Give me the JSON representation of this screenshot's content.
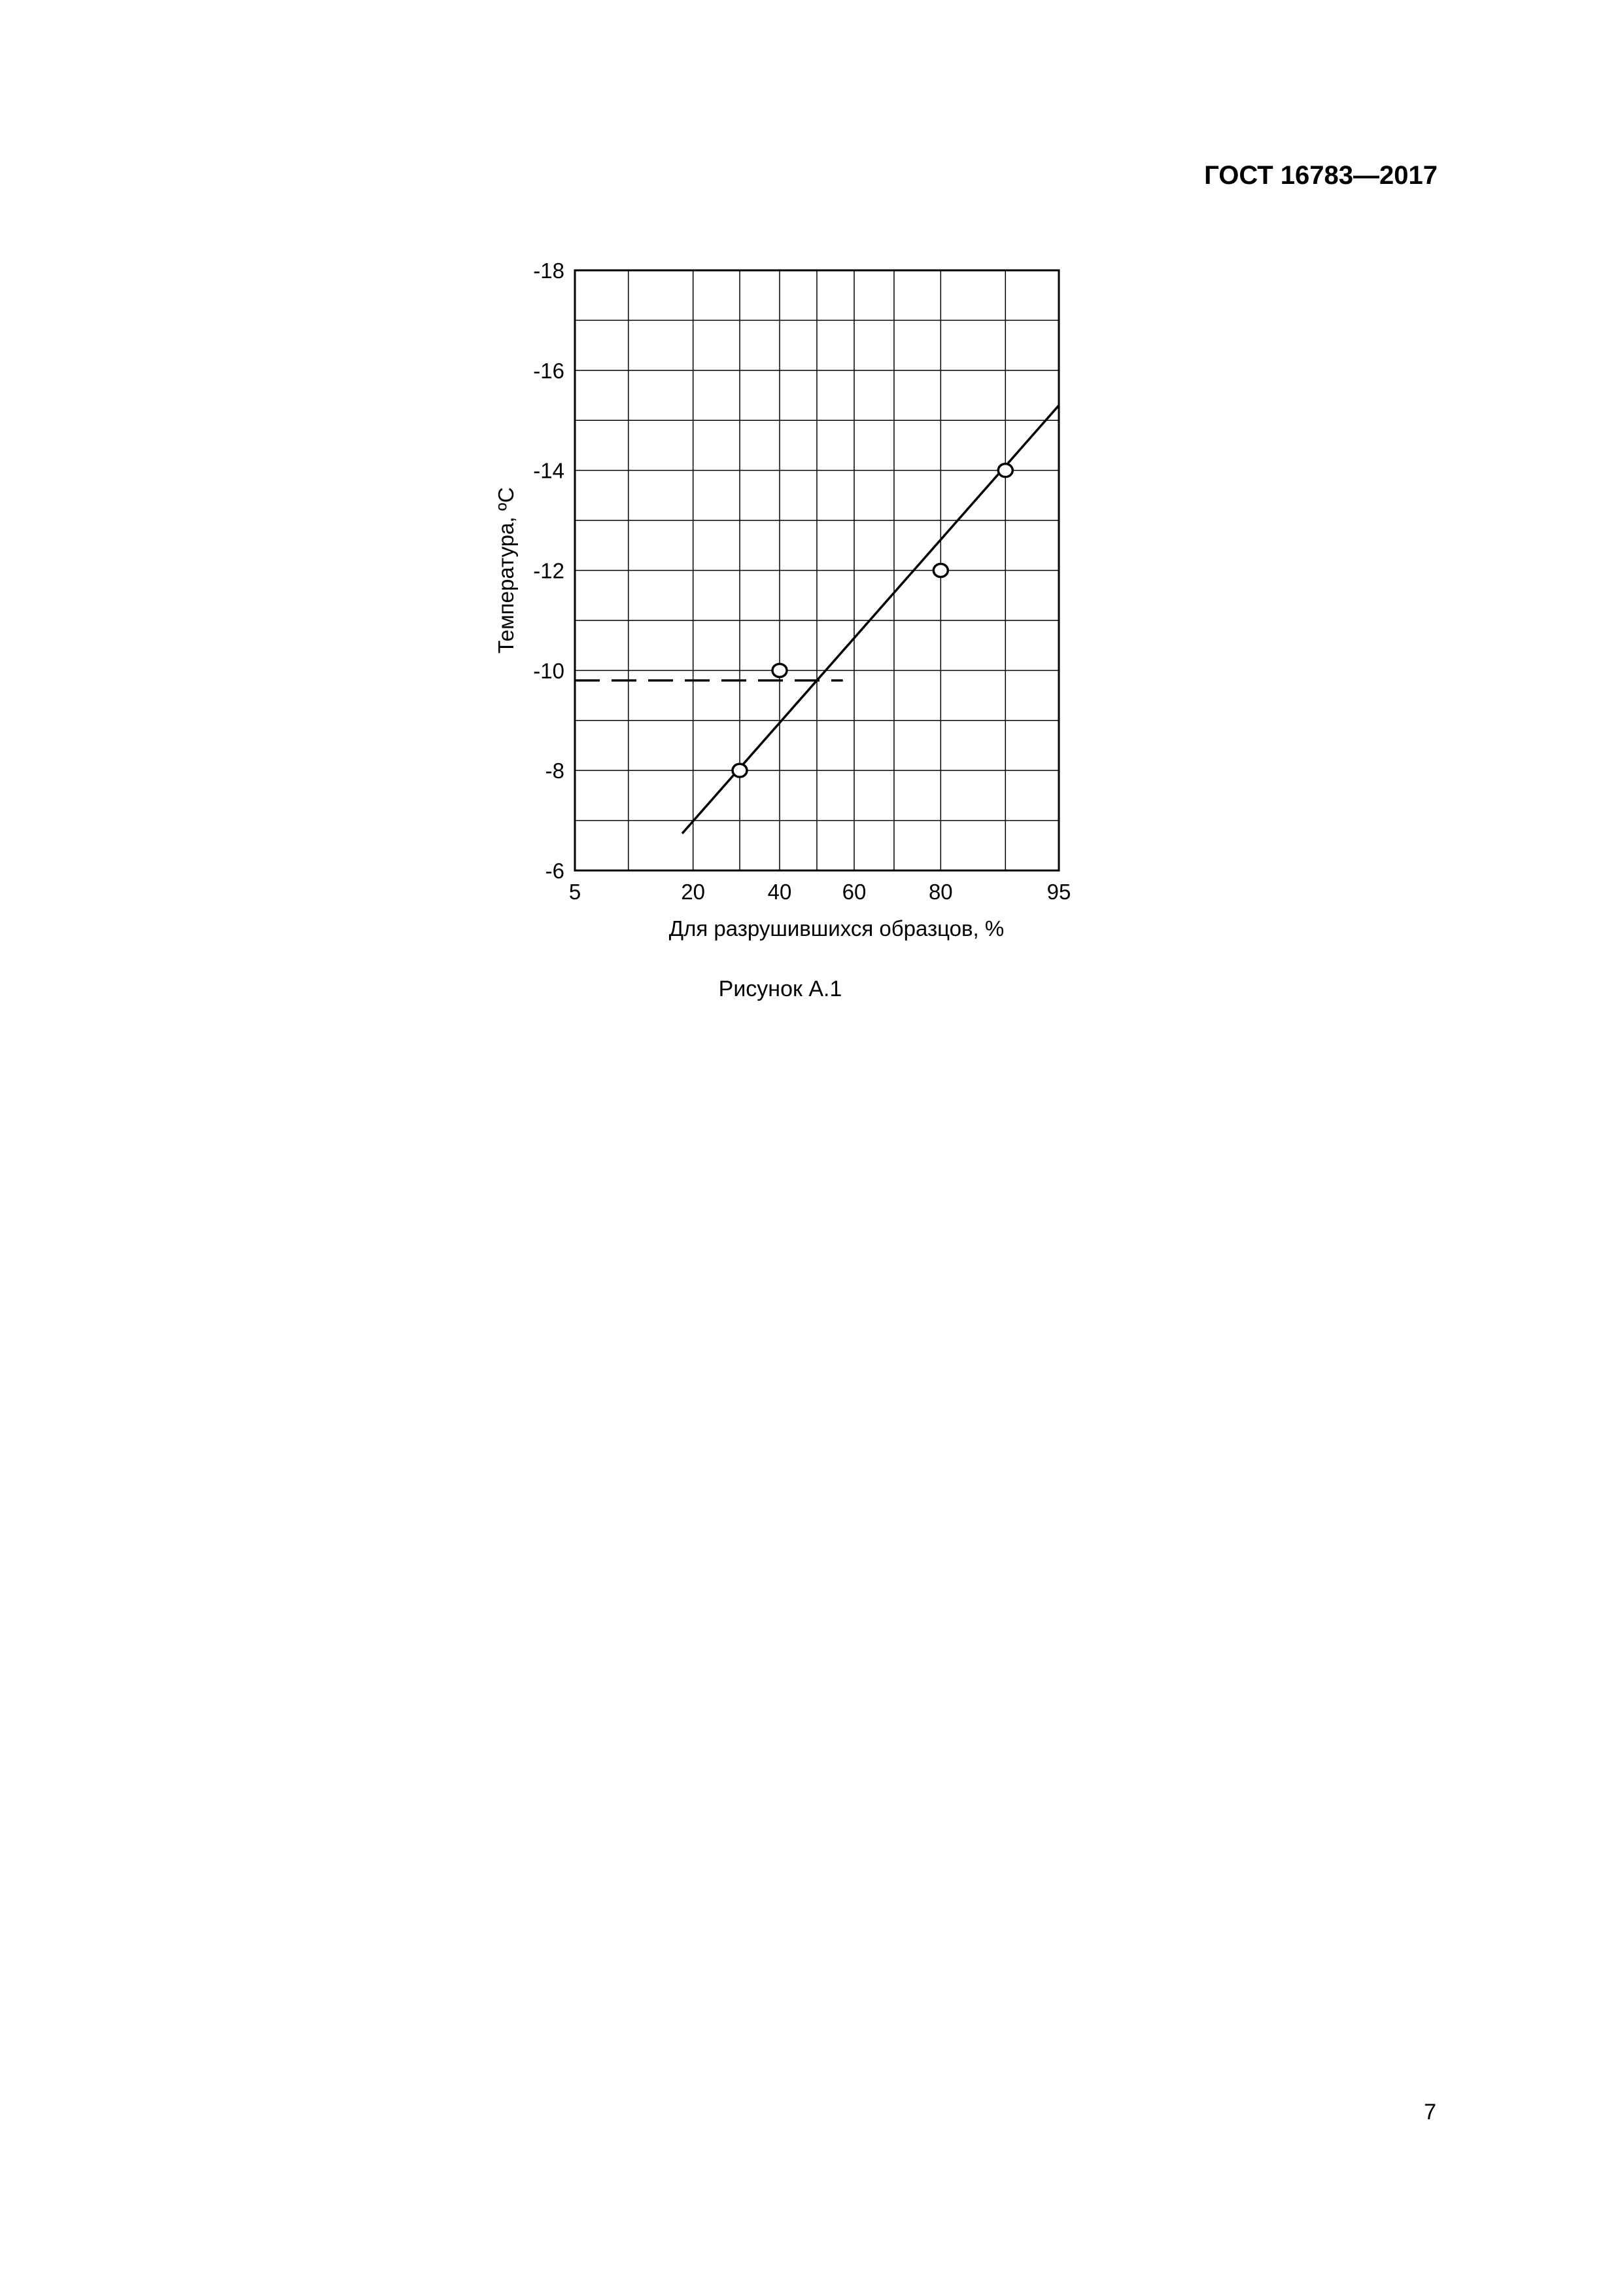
{
  "header": {
    "doc_code": "ГОСТ 16783—2017"
  },
  "figure": {
    "caption": "Рисунок А.1"
  },
  "page_number": "7",
  "chart_data": {
    "type": "scatter",
    "title": "",
    "xlabel": "Для разрушившихся образцов, %",
    "ylabel": "Температура, ºС",
    "x_scale": "normal-probability",
    "xlim": [
      5,
      95
    ],
    "ylim": [
      -6,
      -18
    ],
    "x_ticks": [
      "5",
      "20",
      "40",
      "60",
      "80",
      "95"
    ],
    "x_grid": [
      5,
      10,
      20,
      30,
      40,
      50,
      60,
      70,
      80,
      90,
      95
    ],
    "y_ticks": [
      "-6",
      "-8",
      "-10",
      "-12",
      "-14",
      "-16",
      "-18"
    ],
    "y_grid_step": 1,
    "grid": true,
    "points": [
      {
        "x": 30,
        "y": -8
      },
      {
        "x": 40,
        "y": -10
      },
      {
        "x": 80,
        "y": -12
      },
      {
        "x": 90,
        "y": -14
      }
    ],
    "fit_line": {
      "x": [
        18,
        95
      ],
      "y": [
        -6.74,
        -15.3
      ]
    },
    "reference_line": {
      "style": "dashed",
      "y": -9.8,
      "x": [
        5,
        57
      ]
    }
  }
}
